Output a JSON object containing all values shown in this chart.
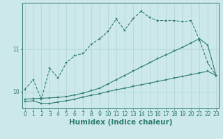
{
  "xlabel": "Humidex (Indice chaleur)",
  "bg_color": "#cce8e8",
  "line_color": "#2e7d6e",
  "x_ticks": [
    0,
    1,
    2,
    3,
    4,
    5,
    6,
    7,
    8,
    9,
    10,
    11,
    12,
    13,
    14,
    15,
    16,
    17,
    18,
    19,
    20,
    21,
    22,
    23
  ],
  "y_ticks": [
    10,
    11
  ],
  "ylim": [
    9.6,
    12.1
  ],
  "xlim": [
    -0.3,
    23.3
  ],
  "line1_x": [
    0,
    1,
    2,
    3,
    4,
    5,
    6,
    7,
    8,
    9,
    10,
    11,
    12,
    13,
    14,
    15,
    16,
    17,
    18,
    19,
    20,
    21,
    22,
    23
  ],
  "line1_y": [
    10.05,
    10.28,
    9.82,
    10.55,
    10.32,
    10.68,
    10.85,
    10.9,
    11.12,
    11.25,
    11.42,
    11.72,
    11.45,
    11.72,
    11.9,
    11.75,
    11.68,
    11.68,
    11.68,
    11.65,
    11.68,
    11.22,
    10.68,
    10.38
  ],
  "line2_x": [
    0,
    1,
    2,
    3,
    4,
    5,
    6,
    7,
    8,
    9,
    10,
    11,
    12,
    13,
    14,
    15,
    16,
    17,
    18,
    19,
    20,
    21,
    22,
    23
  ],
  "line2_y": [
    9.82,
    9.83,
    9.84,
    9.85,
    9.86,
    9.88,
    9.92,
    9.96,
    10.02,
    10.08,
    10.18,
    10.28,
    10.38,
    10.48,
    10.58,
    10.68,
    10.78,
    10.87,
    10.96,
    11.05,
    11.15,
    11.25,
    11.1,
    10.38
  ],
  "line3_x": [
    0,
    1,
    2,
    3,
    4,
    5,
    6,
    7,
    8,
    9,
    10,
    11,
    12,
    13,
    14,
    15,
    16,
    17,
    18,
    19,
    20,
    21,
    22,
    23
  ],
  "line3_y": [
    9.76,
    9.78,
    9.72,
    9.72,
    9.75,
    9.78,
    9.82,
    9.87,
    9.91,
    9.95,
    10.0,
    10.04,
    10.08,
    10.12,
    10.16,
    10.2,
    10.24,
    10.28,
    10.32,
    10.36,
    10.4,
    10.44,
    10.48,
    10.38
  ],
  "grid_color": "#aed4d4",
  "tick_fontsize": 5.5,
  "label_fontsize": 7.5
}
